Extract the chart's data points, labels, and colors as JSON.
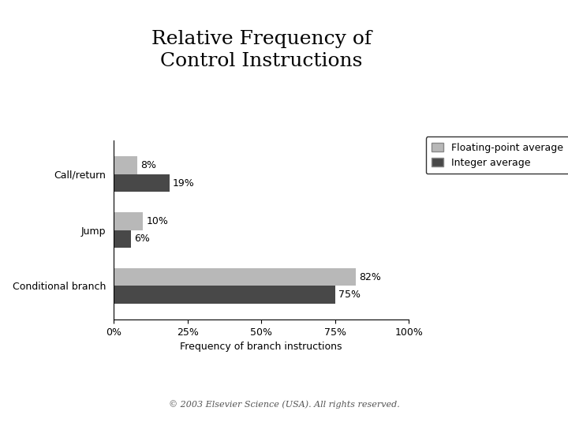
{
  "title": "Relative Frequency of\nControl Instructions",
  "categories": [
    "Conditional branch",
    "Jump",
    "Call/return"
  ],
  "floating_point": [
    82,
    10,
    8
  ],
  "integer": [
    75,
    6,
    19
  ],
  "floating_point_color": "#b8b8b8",
  "integer_color": "#484848",
  "xlabel": "Frequency of branch instructions",
  "xtick_labels": [
    "0%",
    "25%",
    "50%",
    "75%",
    "100%"
  ],
  "xtick_values": [
    0,
    25,
    50,
    75,
    100
  ],
  "xlim": [
    0,
    105
  ],
  "legend_labels": [
    "Floating-point average",
    "Integer average"
  ],
  "bar_height": 0.32,
  "footnote": "© 2003 Elsevier Science (USA). All rights reserved.",
  "title_fontsize": 18,
  "axis_fontsize": 9,
  "tick_fontsize": 9,
  "legend_fontsize": 9,
  "annotation_fontsize": 9,
  "footnote_fontsize": 8,
  "background_color": "#ffffff"
}
